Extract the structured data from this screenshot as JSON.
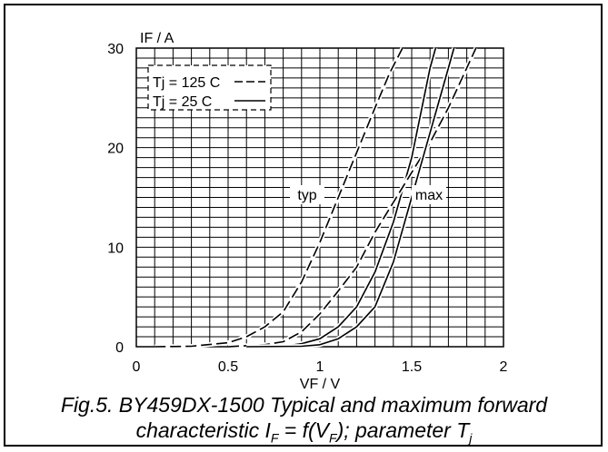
{
  "chart_data": {
    "type": "line",
    "title": "",
    "xlabel": "VF / V",
    "ylabel": "IF / A",
    "xlim": [
      0,
      2
    ],
    "ylim": [
      0,
      30
    ],
    "x_ticks": [
      "0",
      "0.5",
      "1",
      "1.5",
      "2"
    ],
    "y_ticks": [
      "0",
      "10",
      "20",
      "30"
    ],
    "grid": true,
    "legend": {
      "placement": "top-left",
      "entries": [
        {
          "label": "Tj = 125 C",
          "style": "dashed"
        },
        {
          "label": "Tj = 25 C",
          "style": "solid"
        }
      ]
    },
    "annotations": [
      "typ",
      "max"
    ],
    "series": [
      {
        "style": "dashed",
        "group": "typ",
        "points": [
          [
            0.1,
            0
          ],
          [
            0.3,
            0.05
          ],
          [
            0.5,
            0.4
          ],
          [
            0.6,
            1.0
          ],
          [
            0.7,
            2.0
          ],
          [
            0.8,
            3.5
          ],
          [
            0.9,
            6.5
          ],
          [
            1.0,
            10.5
          ],
          [
            1.1,
            15.0
          ],
          [
            1.2,
            19.5
          ],
          [
            1.3,
            24.0
          ],
          [
            1.38,
            27.5
          ],
          [
            1.45,
            30.0
          ]
        ]
      },
      {
        "style": "solid",
        "group": "typ",
        "points": [
          [
            0.5,
            0
          ],
          [
            0.8,
            0.05
          ],
          [
            0.9,
            0.3
          ],
          [
            1.0,
            0.8
          ],
          [
            1.1,
            2.0
          ],
          [
            1.2,
            4.0
          ],
          [
            1.3,
            7.5
          ],
          [
            1.4,
            12.5
          ],
          [
            1.5,
            19.0
          ],
          [
            1.55,
            23.5
          ],
          [
            1.6,
            28.0
          ],
          [
            1.63,
            30.0
          ]
        ]
      },
      {
        "style": "dashed",
        "group": "max",
        "points": [
          [
            0.5,
            0
          ],
          [
            0.7,
            0.2
          ],
          [
            0.8,
            0.5
          ],
          [
            0.9,
            1.5
          ],
          [
            1.0,
            3.3
          ],
          [
            1.1,
            5.6
          ],
          [
            1.2,
            8.0
          ],
          [
            1.3,
            11.5
          ],
          [
            1.4,
            14.5
          ],
          [
            1.5,
            17.5
          ],
          [
            1.6,
            20.5
          ],
          [
            1.7,
            24.0
          ],
          [
            1.8,
            28.0
          ],
          [
            1.85,
            30.0
          ]
        ]
      },
      {
        "style": "solid",
        "group": "max",
        "points": [
          [
            0.6,
            0
          ],
          [
            0.9,
            0.05
          ],
          [
            1.0,
            0.2
          ],
          [
            1.1,
            0.8
          ],
          [
            1.2,
            2.0
          ],
          [
            1.3,
            4.0
          ],
          [
            1.4,
            8.5
          ],
          [
            1.5,
            15.0
          ],
          [
            1.6,
            21.5
          ],
          [
            1.7,
            28.0
          ],
          [
            1.73,
            30.0
          ]
        ]
      }
    ]
  },
  "caption": {
    "line1": "Fig.5.  BY459DX-1500 Typical and maximum forward",
    "line2_a": "characteristic I",
    "line2_sub1": "F",
    "line2_b": " = f(V",
    "line2_sub2": "F",
    "line2_c": "); parameter T",
    "line2_sub3": "j"
  }
}
